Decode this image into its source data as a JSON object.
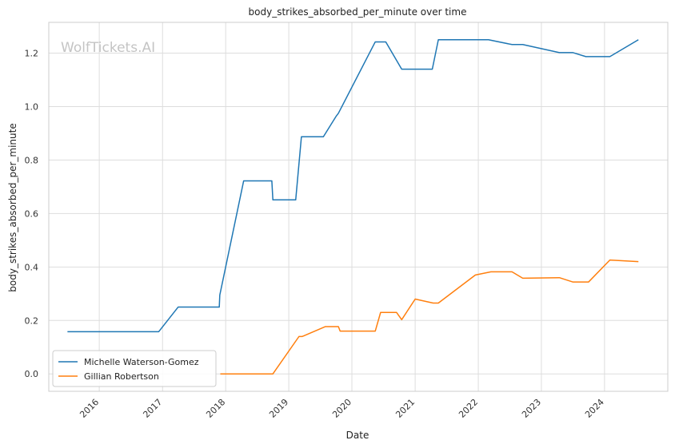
{
  "chart_data": {
    "type": "line",
    "title": "body_strikes_absorbed_per_minute over time",
    "xlabel": "Date",
    "ylabel": "body_strikes_absorbed_per_minute",
    "watermark": "WolfTickets.AI",
    "x_ticks": [
      "2016",
      "2017",
      "2018",
      "2019",
      "2020",
      "2021",
      "2022",
      "2023",
      "2024"
    ],
    "y_ticks": [
      "0.0",
      "0.2",
      "0.4",
      "0.6",
      "0.8",
      "1.0",
      "1.2"
    ],
    "xlim": [
      "2015-03-15",
      "2025-01-01"
    ],
    "ylim": [
      -0.065,
      1.315
    ],
    "grid": true,
    "legend_position": "lower-left",
    "series": [
      {
        "name": "Michelle Waterson-Gomez",
        "color": "#1f77b4",
        "points": [
          [
            "2015-07-01",
            0.158
          ],
          [
            "2016-12-10",
            0.158
          ],
          [
            "2017-04-01",
            0.25
          ],
          [
            "2017-11-25",
            0.25
          ],
          [
            "2017-11-28",
            0.295
          ],
          [
            "2018-04-15",
            0.722
          ],
          [
            "2018-09-25",
            0.722
          ],
          [
            "2018-10-01",
            0.651
          ],
          [
            "2019-02-10",
            0.651
          ],
          [
            "2019-03-15",
            0.887
          ],
          [
            "2019-07-20",
            0.887
          ],
          [
            "2019-10-01",
            0.963
          ],
          [
            "2019-10-15",
            0.975
          ],
          [
            "2020-05-15",
            1.242
          ],
          [
            "2020-07-15",
            1.242
          ],
          [
            "2020-10-15",
            1.14
          ],
          [
            "2021-04-10",
            1.14
          ],
          [
            "2021-05-15",
            1.25
          ],
          [
            "2022-03-01",
            1.25
          ],
          [
            "2022-07-15",
            1.232
          ],
          [
            "2022-09-15",
            1.232
          ],
          [
            "2023-04-15",
            1.202
          ],
          [
            "2023-07-01",
            1.202
          ],
          [
            "2023-09-15",
            1.187
          ],
          [
            "2024-02-01",
            1.187
          ],
          [
            "2024-07-15",
            1.25
          ]
        ]
      },
      {
        "name": "Gillian Robertson",
        "color": "#ff7f0e",
        "points": [
          [
            "2017-12-01",
            0.0
          ],
          [
            "2018-10-01",
            0.0
          ],
          [
            "2019-03-01",
            0.14
          ],
          [
            "2019-03-20",
            0.14
          ],
          [
            "2019-08-01",
            0.177
          ],
          [
            "2019-10-15",
            0.177
          ],
          [
            "2019-10-25",
            0.16
          ],
          [
            "2020-05-15",
            0.16
          ],
          [
            "2020-06-15",
            0.23
          ],
          [
            "2020-09-15",
            0.23
          ],
          [
            "2020-10-15",
            0.203
          ],
          [
            "2021-01-01",
            0.28
          ],
          [
            "2021-04-15",
            0.265
          ],
          [
            "2021-05-15",
            0.265
          ],
          [
            "2021-12-15",
            0.37
          ],
          [
            "2022-03-15",
            0.382
          ],
          [
            "2022-07-15",
            0.382
          ],
          [
            "2022-09-15",
            0.358
          ],
          [
            "2023-04-15",
            0.36
          ],
          [
            "2023-07-01",
            0.344
          ],
          [
            "2023-10-01",
            0.344
          ],
          [
            "2024-02-01",
            0.426
          ],
          [
            "2024-07-15",
            0.42
          ]
        ]
      }
    ]
  }
}
